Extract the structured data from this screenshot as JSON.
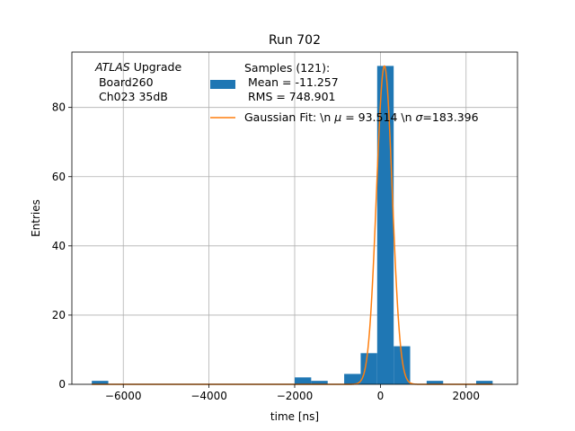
{
  "chart_data": {
    "type": "bar",
    "title": "Run 702",
    "xlabel": "time [ns]",
    "ylabel": "Entries",
    "xlim": [
      -7200,
      3200
    ],
    "ylim": [
      0,
      96
    ],
    "xticks": [
      -6000,
      -4000,
      -2000,
      0,
      2000
    ],
    "xtick_labels": [
      "−6000",
      "−4000",
      "−2000",
      "0",
      "2000"
    ],
    "yticks": [
      0,
      20,
      40,
      60,
      80
    ],
    "ytick_labels": [
      "0",
      "20",
      "40",
      "60",
      "80"
    ],
    "grid": true,
    "colors": {
      "histogram": "#1f77b4",
      "fit": "#ff7f0e"
    },
    "annotation": {
      "italic": "ATLAS",
      "rest": " Upgrade",
      "line2": " Board260",
      "line3": " Ch023 35dB"
    },
    "legend": {
      "position": "top",
      "histogram_lines": [
        "Samples (121):",
        " Mean = -11.257",
        " RMS = 748.901"
      ],
      "fit_label": {
        "a": "Gaussian Fit: \\n ",
        "mu": "μ",
        "b": " = 93.514 \\n ",
        "sigma": "σ",
        "c": "=183.396"
      }
    },
    "series": [
      {
        "type": "histogram",
        "bin_width": 385,
        "bins": [
          {
            "start": -6735,
            "count": 1
          },
          {
            "start": -2000,
            "count": 2
          },
          {
            "start": -1615,
            "count": 1
          },
          {
            "start": -845,
            "count": 3
          },
          {
            "start": -460,
            "count": 9
          },
          {
            "start": -75,
            "count": 92
          },
          {
            "start": 310,
            "count": 11
          },
          {
            "start": 1080,
            "count": 1
          },
          {
            "start": 2235,
            "count": 1
          }
        ]
      },
      {
        "type": "gaussian_fit",
        "mu": 93.514,
        "sigma": 183.396,
        "amplitude": 92,
        "x_range": [
          -6735,
          2620
        ]
      }
    ]
  }
}
